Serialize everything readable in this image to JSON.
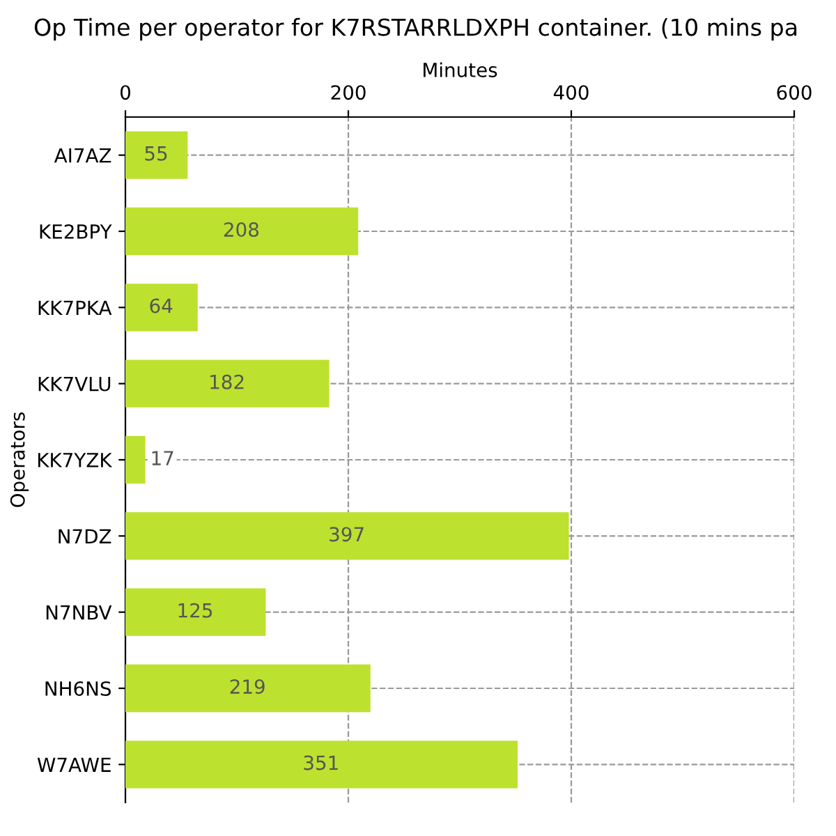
{
  "chart_data": {
    "type": "bar",
    "orientation": "horizontal",
    "title": "Op Time per operator for K7RSTARRLDXPH container. (10 mins pa",
    "xlabel": "Minutes",
    "ylabel": "Operators",
    "categories": [
      "AI7AZ",
      "KE2BPY",
      "KK7PKA",
      "KK7VLU",
      "KK7YZK",
      "N7DZ",
      "N7NBV",
      "NH6NS",
      "W7AWE"
    ],
    "values": [
      55,
      208,
      64,
      182,
      17,
      397,
      125,
      219,
      351
    ],
    "color": "#bde12f",
    "xlim": [
      0,
      600
    ],
    "xticks": [
      0,
      200,
      400,
      600
    ],
    "grid": true,
    "data_labels": true
  }
}
